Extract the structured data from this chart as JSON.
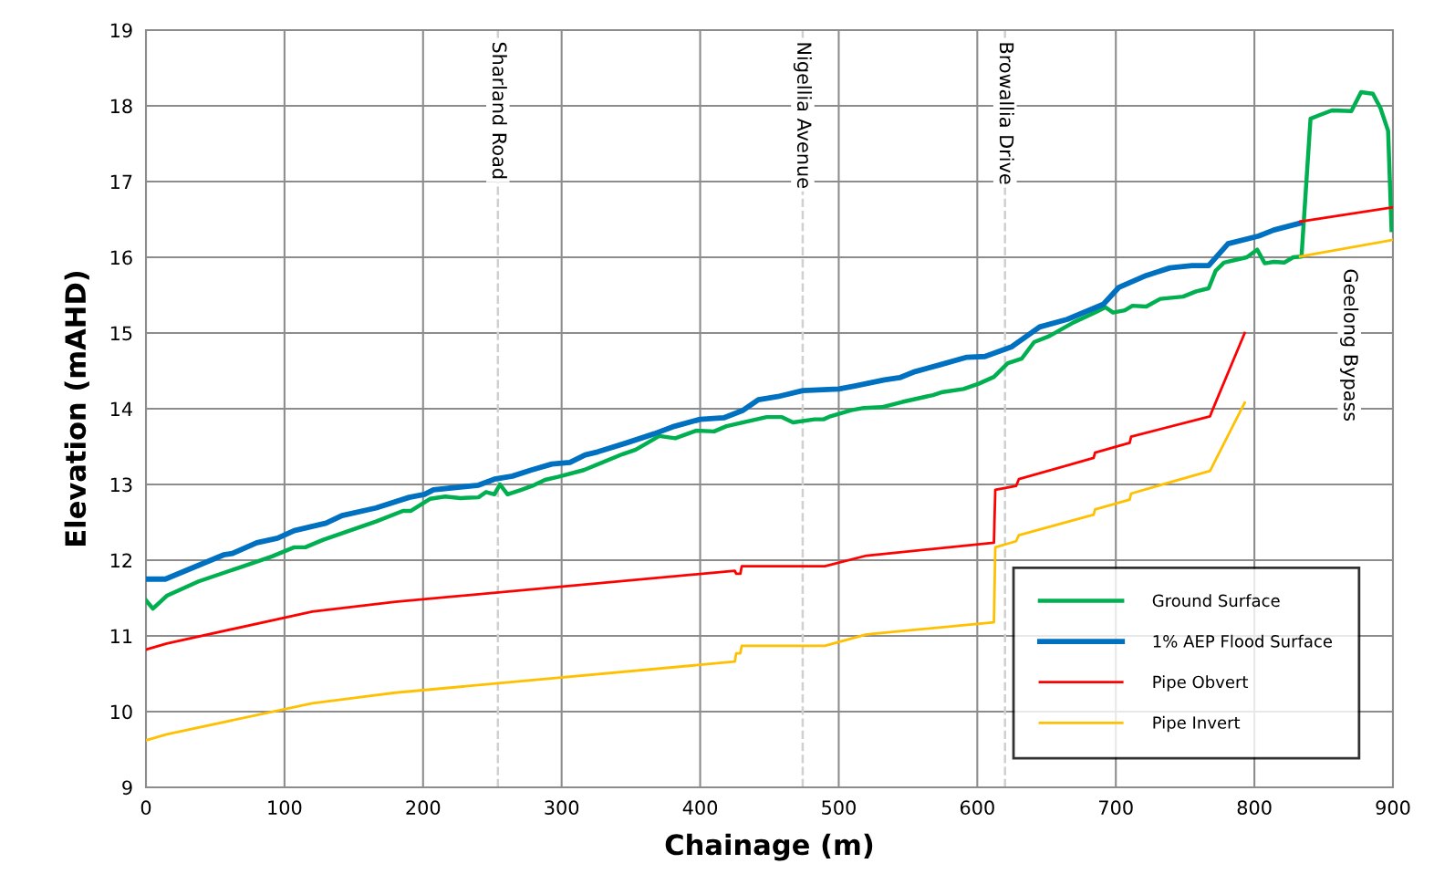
{
  "chart_data": {
    "type": "line",
    "xlabel": "Chainage (m)",
    "ylabel": "Elevation (mAHD)",
    "xlim": [
      0,
      900
    ],
    "xticks": [
      0,
      100,
      200,
      300,
      400,
      500,
      600,
      700,
      800,
      900
    ],
    "ylim": [
      9,
      19
    ],
    "yticks": [
      9,
      10,
      11,
      12,
      13,
      14,
      15,
      16,
      17,
      18,
      19
    ],
    "grid": true,
    "legend": "bottom right",
    "marker": "none",
    "line_style": "solid",
    "ref_lines": [
      {
        "axis": "x",
        "value": 254,
        "label": "Sharland Road",
        "color": "#d0d0d0",
        "line_style": "dashed"
      },
      {
        "axis": "x",
        "value": 474,
        "label": "Nigellia Avenue",
        "color": "#d0d0d0",
        "line_style": "dashed"
      },
      {
        "axis": "x",
        "value": 620,
        "label": "Browallia Drive",
        "color": "#d0d0d0",
        "line_style": "dashed"
      }
    ],
    "annotations": [
      "Geelong Bypass"
    ],
    "series": [
      {
        "name": "Ground Surface",
        "color": "#00b050",
        "x": [
          0,
          5,
          15,
          38,
          67,
          91,
          107,
          115,
          128,
          166,
          185.5,
          191,
          205,
          216,
          227,
          240,
          245.5,
          251.5,
          255.5,
          261,
          271,
          280,
          288,
          297.5,
          316,
          344,
          353.5,
          370.5,
          382,
          397,
          410,
          419,
          448,
          459,
          467,
          482.5,
          489,
          494,
          509,
          518,
          531,
          546,
          568,
          575,
          590,
          601,
          612,
          622,
          632,
          641,
          652,
          669.5,
          685,
          692.5,
          698,
          706.5,
          712,
          722,
          732,
          748.5,
          758,
          767,
          772,
          778,
          794.5,
          802,
          807.5,
          814,
          821.5,
          828,
          834,
          840.5,
          846,
          856,
          870,
          877,
          885.5,
          891,
          896.5,
          899
        ],
        "values": [
          11.47,
          11.36,
          11.53,
          11.72,
          11.9,
          12.05,
          12.17,
          12.17,
          12.27,
          12.51,
          12.65,
          12.65,
          12.81,
          12.84,
          12.82,
          12.83,
          12.9,
          12.87,
          13.0,
          12.87,
          12.93,
          12.99,
          13.06,
          13.1,
          13.19,
          13.4,
          13.46,
          13.64,
          13.61,
          13.71,
          13.7,
          13.77,
          13.89,
          13.89,
          13.82,
          13.86,
          13.86,
          13.9,
          13.98,
          14.01,
          14.02,
          14.09,
          14.18,
          14.22,
          14.26,
          14.33,
          14.42,
          14.6,
          14.66,
          14.88,
          14.96,
          15.14,
          15.27,
          15.34,
          15.27,
          15.3,
          15.36,
          15.35,
          15.45,
          15.48,
          15.55,
          15.59,
          15.82,
          15.93,
          16.0,
          16.1,
          15.92,
          15.94,
          15.93,
          16.0,
          16.01,
          17.83,
          17.87,
          17.94,
          17.93,
          18.18,
          18.16,
          17.97,
          17.67,
          16.36
        ]
      },
      {
        "name": "1% AEP Flood Surface",
        "color": "#0070c0",
        "x": [
          0,
          14,
          56,
          62.5,
          80,
          95,
          107,
          130,
          141.5,
          166,
          190,
          201,
          207.5,
          240,
          251.5,
          264.5,
          278,
          293,
          306,
          317,
          326,
          347,
          367,
          380,
          400,
          417,
          431,
          442,
          456,
          474,
          500,
          511.5,
          533,
          544,
          555,
          573,
          592.5,
          605.5,
          625,
          645,
          665,
          678,
          691,
          702,
          722,
          739,
          755,
          767,
          781,
          803,
          814,
          833
        ],
        "values": [
          11.75,
          11.75,
          12.07,
          12.09,
          12.23,
          12.29,
          12.39,
          12.49,
          12.59,
          12.69,
          12.83,
          12.87,
          12.93,
          12.99,
          13.07,
          13.11,
          13.19,
          13.27,
          13.29,
          13.39,
          13.43,
          13.55,
          13.67,
          13.76,
          13.86,
          13.88,
          13.98,
          14.12,
          14.16,
          14.24,
          14.26,
          14.3,
          14.38,
          14.41,
          14.49,
          14.58,
          14.68,
          14.69,
          14.82,
          15.08,
          15.18,
          15.28,
          15.38,
          15.6,
          15.76,
          15.86,
          15.89,
          15.89,
          16.18,
          16.28,
          16.36,
          16.45
        ]
      },
      {
        "name": "Pipe Obvert",
        "color": "#ff0000",
        "x": [
          0,
          15,
          120,
          180,
          425,
          426,
          429,
          430,
          490,
          520,
          612,
          613,
          628,
          630,
          684,
          685,
          710,
          711,
          768,
          769,
          793,
          810,
          833,
          900
        ],
        "values": [
          10.82,
          10.9,
          11.32,
          11.45,
          11.86,
          11.82,
          11.82,
          11.92,
          11.92,
          12.06,
          12.23,
          12.93,
          12.98,
          13.07,
          13.35,
          13.42,
          13.55,
          13.63,
          13.9,
          13.95,
          15.0,
          null,
          16.47,
          16.66
        ]
      },
      {
        "name": "Pipe Invert",
        "color": "#ffc000",
        "x": [
          0,
          15,
          120,
          180,
          425,
          426,
          429,
          430,
          490,
          520,
          612,
          613,
          628,
          630,
          684,
          685,
          710,
          711,
          768,
          793,
          810,
          833,
          900
        ],
        "values": [
          9.62,
          9.7,
          10.11,
          10.25,
          10.66,
          10.77,
          10.77,
          10.87,
          10.87,
          11.02,
          11.18,
          12.17,
          12.25,
          12.33,
          12.6,
          12.67,
          12.8,
          12.88,
          13.18,
          14.08,
          null,
          16.01,
          16.23
        ]
      }
    ]
  }
}
